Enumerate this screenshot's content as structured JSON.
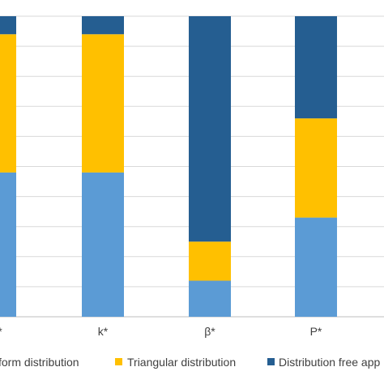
{
  "chart_data": {
    "type": "bar",
    "stacked": "percent",
    "categories": [
      "",
      "k*",
      "β*",
      "P*"
    ],
    "category_labels": [
      "*",
      "k*",
      "β*",
      "P*"
    ],
    "series": [
      {
        "name": "Uniform distribution",
        "legend_label": "form distribution",
        "values": [
          48,
          48,
          12,
          33
        ],
        "color": "#5b9bd5"
      },
      {
        "name": "Triangular distribution",
        "legend_label": "Triangular distribution",
        "values": [
          46,
          46,
          13,
          33
        ],
        "color": "#ffc000"
      },
      {
        "name": "Distribution free approach",
        "legend_label": "Distribution free app",
        "values": [
          6,
          6,
          75,
          34
        ],
        "color": "#255e91"
      }
    ],
    "ylim": [
      0,
      100
    ],
    "grid": true,
    "legend_position": "bottom"
  }
}
